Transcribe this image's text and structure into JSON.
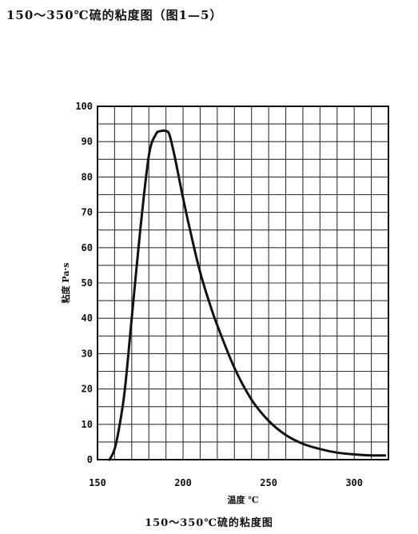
{
  "header": {
    "text": "150～350℃硫的粘度图（图1—5）"
  },
  "chart_data": {
    "type": "line",
    "title": "",
    "xlabel": "温度 ℃",
    "ylabel": "粘度 Pa·s",
    "xlim": [
      150,
      320
    ],
    "ylim": [
      0,
      100
    ],
    "x_ticks": [
      150,
      200,
      250,
      300
    ],
    "y_ticks": [
      0,
      10,
      20,
      30,
      40,
      50,
      60,
      70,
      80,
      90,
      100
    ],
    "grid": true,
    "series": [
      {
        "x": [
          157,
          160,
          163,
          166,
          170,
          175,
          180,
          184,
          187,
          190,
          192,
          195,
          200,
          205,
          210,
          215,
          220,
          230,
          240,
          250,
          260,
          270,
          280,
          290,
          300,
          310,
          318
        ],
        "y": [
          0,
          3,
          10,
          20,
          40,
          65,
          86,
          92,
          93,
          93,
          92,
          86,
          74,
          63,
          53,
          45,
          38,
          26,
          17,
          11,
          7,
          4.5,
          3,
          2,
          1.5,
          1.2,
          1.2
        ]
      }
    ]
  },
  "caption": {
    "text": "150～350℃硫的粘度图"
  }
}
